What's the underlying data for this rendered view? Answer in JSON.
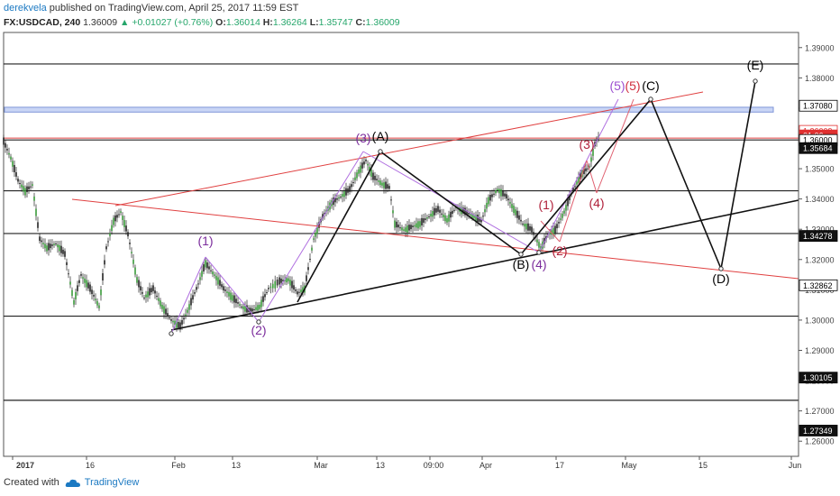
{
  "header": {
    "author": "derekvela",
    "publish_text": "published on TradingView.com, April 25, 2017 11:59 EST",
    "symbol": "FX:USDCAD, 240",
    "price": "1.36009",
    "change_arrow": "▲",
    "change": "+0.01027 (+0.76%)",
    "o_label": "O:",
    "o_value": "1.36014",
    "h_label": "H:",
    "h_value": "1.36264",
    "l_label": "L:",
    "l_value": "1.35747",
    "c_label": "C:",
    "c_value": "1.36009"
  },
  "footer": {
    "created_with": "Created with",
    "brand": "TradingView"
  },
  "chart_data": {
    "type": "line",
    "title": "",
    "xlabel": "",
    "ylabel": "",
    "ylim": [
      1.255,
      1.395
    ],
    "yticks": [
      "1.39000",
      "1.38000",
      "1.37000",
      "1.36000",
      "1.35000",
      "1.34000",
      "1.33000",
      "1.32000",
      "1.31000",
      "1.30000",
      "1.29000",
      "1.28000",
      "1.27000",
      "1.26000"
    ],
    "xticks": [
      "2017",
      "16",
      "Feb",
      "13",
      "Mar",
      "13",
      "09:00",
      "Apr",
      "17",
      "May",
      "15",
      "Jun"
    ],
    "price_badges": [
      {
        "label": "1.37080",
        "y": 1.3708,
        "color": "#000000",
        "dark": false
      },
      {
        "label": "1.36009",
        "y": 1.3625,
        "color": "#e03030",
        "dark": false
      },
      {
        "label": "01:06",
        "y": 1.361,
        "color": "#e03030",
        "dark": true
      },
      {
        "label": "1.36000",
        "y": 1.3595,
        "color": "#000000",
        "dark": false
      },
      {
        "label": "1.35684",
        "y": 1.3568,
        "color": "#000000",
        "dark": true
      },
      {
        "label": "1.34278",
        "y": 1.3278,
        "color": "#000000",
        "dark": true
      },
      {
        "label": "1.32862",
        "y": 1.3115,
        "color": "#000000",
        "dark": false
      },
      {
        "label": "1.30105",
        "y": 1.281,
        "color": "#000000",
        "dark": true
      },
      {
        "label": "1.27349",
        "y": 1.2635,
        "color": "#000000",
        "dark": true
      }
    ],
    "horizontal_levels": [
      1.3846,
      1.3595,
      1.3427,
      1.3286,
      1.3013,
      1.2735
    ],
    "red_level": 1.3601,
    "resistance_zone": [
      1.3687,
      1.3703
    ],
    "wave_labels": [
      {
        "text": "(1)",
        "color": "#7b2c9c",
        "x": 228,
        "y": 272
      },
      {
        "text": "(2)",
        "color": "#7b2c9c",
        "x": 287,
        "y": 371
      },
      {
        "text": "(3)",
        "color": "#7b2c9c",
        "x": 403,
        "y": 158
      },
      {
        "text": "(A)",
        "color": "#000000",
        "x": 422,
        "y": 156
      },
      {
        "text": "(B)",
        "color": "#000000",
        "x": 578,
        "y": 298
      },
      {
        "text": "(4)",
        "color": "#7b2c9c",
        "x": 598,
        "y": 298
      },
      {
        "text": "(1)",
        "color": "#b0203a",
        "x": 606,
        "y": 232
      },
      {
        "text": "(2)",
        "color": "#b0203a",
        "x": 621,
        "y": 283
      },
      {
        "text": "(3)",
        "color": "#b0203a",
        "x": 651,
        "y": 165
      },
      {
        "text": "(4)",
        "color": "#b0203a",
        "x": 662,
        "y": 230
      },
      {
        "text": "(5)",
        "color": "#9c4fd0",
        "x": 685,
        "y": 100
      },
      {
        "text": "(5)",
        "color": "#d03040",
        "x": 702,
        "y": 100
      },
      {
        "text": "(C)",
        "color": "#000000",
        "x": 722,
        "y": 100
      },
      {
        "text": "(D)",
        "color": "#000000",
        "x": 800,
        "y": 314
      },
      {
        "text": "(E)",
        "color": "#000000",
        "x": 838,
        "y": 77
      }
    ]
  }
}
